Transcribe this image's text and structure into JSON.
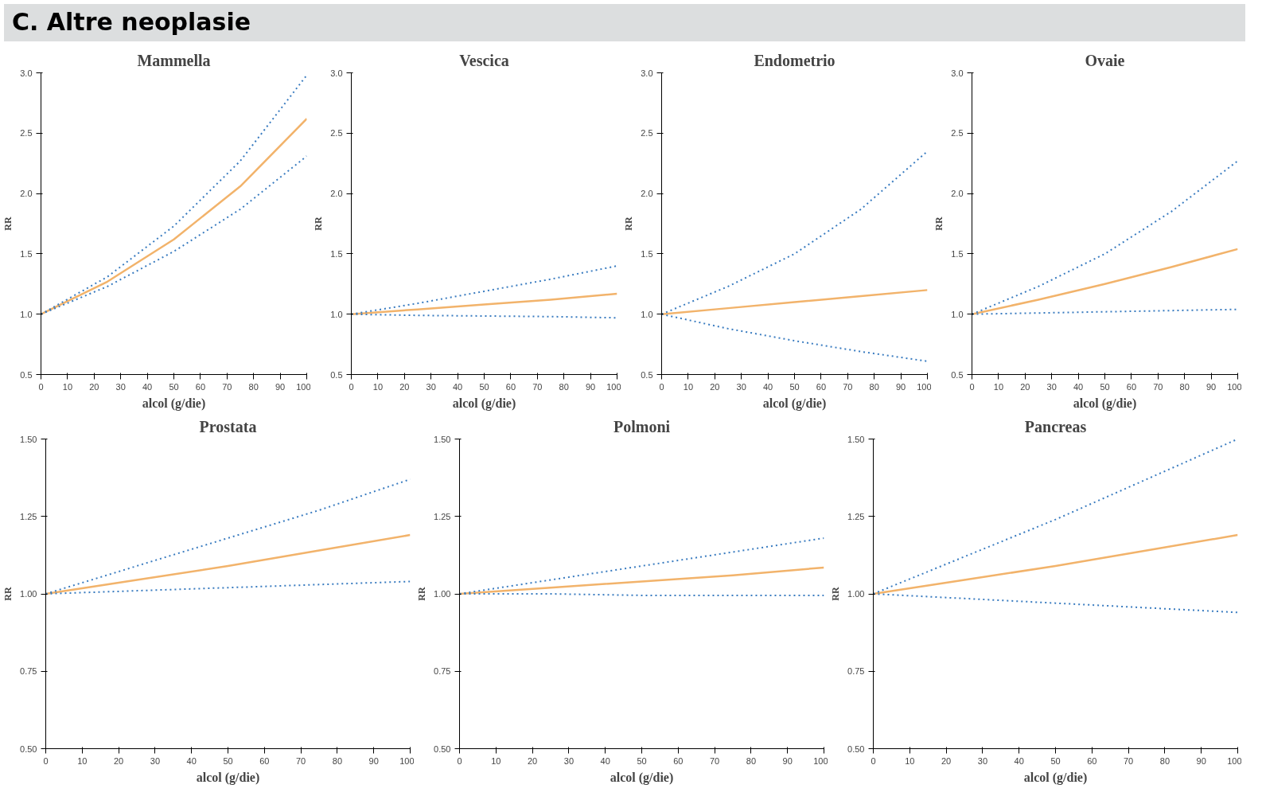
{
  "chart_data": [
    {
      "type": "line",
      "title": "Mammella",
      "annotations": [
        "C. Altre neoplasie"
      ],
      "xlabel": "alcol (g/die)",
      "ylabel": "RR",
      "x": [
        0,
        25,
        50,
        75,
        100
      ],
      "xlim": [
        0,
        100
      ],
      "xticks": [
        0,
        10,
        20,
        30,
        40,
        50,
        60,
        70,
        80,
        90,
        100
      ],
      "ylim": [
        0.5,
        3.0
      ],
      "yticks": [
        {
          "value": 0.5,
          "label": "0.5"
        },
        {
          "value": 1,
          "label": "1.0"
        },
        {
          "value": 1.5,
          "label": "1.5"
        },
        {
          "value": 2,
          "label": "2.0"
        },
        {
          "value": 2.5,
          "label": "2.5"
        },
        {
          "value": 3,
          "label": "3.0"
        }
      ],
      "grid": false,
      "marker": "none",
      "series": [
        {
          "color": "#f2b36b",
          "line_style": "solid",
          "values": [
            1.0,
            1.27,
            1.62,
            2.06,
            2.62
          ]
        },
        {
          "color": "#3a7cc0",
          "line_style": "dotted",
          "values": [
            1.0,
            1.31,
            1.73,
            2.27,
            2.98
          ]
        },
        {
          "color": "#3a7cc0",
          "line_style": "dotted",
          "values": [
            1.0,
            1.23,
            1.52,
            1.87,
            2.31
          ]
        }
      ]
    },
    {
      "type": "line",
      "title": "Vescica",
      "xlabel": "alcol (g/die)",
      "ylabel": "RR",
      "x": [
        0,
        25,
        50,
        75,
        100
      ],
      "xlim": [
        0,
        100
      ],
      "xticks": [
        0,
        10,
        20,
        30,
        40,
        50,
        60,
        70,
        80,
        90,
        100
      ],
      "ylim": [
        0.5,
        3.0
      ],
      "yticks": [
        {
          "value": 0.5,
          "label": "0.5"
        },
        {
          "value": 1,
          "label": "1.0"
        },
        {
          "value": 1.5,
          "label": "1.5"
        },
        {
          "value": 2,
          "label": "2.0"
        },
        {
          "value": 2.5,
          "label": "2.5"
        },
        {
          "value": 3,
          "label": "3.0"
        }
      ],
      "grid": false,
      "marker": "none",
      "series": [
        {
          "color": "#f2b36b",
          "line_style": "solid",
          "values": [
            1.0,
            1.04,
            1.08,
            1.12,
            1.17
          ]
        },
        {
          "color": "#3a7cc0",
          "line_style": "dotted",
          "values": [
            1.0,
            1.09,
            1.19,
            1.29,
            1.4
          ]
        },
        {
          "color": "#3a7cc0",
          "line_style": "dotted",
          "values": [
            1.0,
            0.99,
            0.985,
            0.98,
            0.97
          ]
        }
      ]
    },
    {
      "type": "line",
      "title": "Endometrio",
      "xlabel": "alcol (g/die)",
      "ylabel": "RR",
      "x": [
        0,
        25,
        50,
        75,
        100
      ],
      "xlim": [
        0,
        100
      ],
      "xticks": [
        0,
        10,
        20,
        30,
        40,
        50,
        60,
        70,
        80,
        90,
        100
      ],
      "ylim": [
        0.5,
        3.0
      ],
      "yticks": [
        {
          "value": 0.5,
          "label": "0.5"
        },
        {
          "value": 1,
          "label": "1.0"
        },
        {
          "value": 1.5,
          "label": "1.5"
        },
        {
          "value": 2,
          "label": "2.0"
        },
        {
          "value": 2.5,
          "label": "2.5"
        },
        {
          "value": 3,
          "label": "3.0"
        }
      ],
      "grid": false,
      "marker": "none",
      "series": [
        {
          "color": "#f2b36b",
          "line_style": "solid",
          "values": [
            1.0,
            1.05,
            1.1,
            1.15,
            1.2
          ]
        },
        {
          "color": "#3a7cc0",
          "line_style": "dotted",
          "values": [
            1.0,
            1.23,
            1.5,
            1.87,
            2.35
          ]
        },
        {
          "color": "#3a7cc0",
          "line_style": "dotted",
          "values": [
            1.0,
            0.88,
            0.78,
            0.69,
            0.61
          ]
        }
      ]
    },
    {
      "type": "line",
      "title": "Ovaie",
      "xlabel": "alcol (g/die)",
      "ylabel": "RR",
      "x": [
        0,
        25,
        50,
        75,
        100
      ],
      "xlim": [
        0,
        100
      ],
      "xticks": [
        0,
        10,
        20,
        30,
        40,
        50,
        60,
        70,
        80,
        90,
        100
      ],
      "ylim": [
        0.5,
        3.0
      ],
      "yticks": [
        {
          "value": 0.5,
          "label": "0.5"
        },
        {
          "value": 1,
          "label": "1.0"
        },
        {
          "value": 1.5,
          "label": "1.5"
        },
        {
          "value": 2,
          "label": "2.0"
        },
        {
          "value": 2.5,
          "label": "2.5"
        },
        {
          "value": 3,
          "label": "3.0"
        }
      ],
      "grid": false,
      "marker": "none",
      "series": [
        {
          "color": "#f2b36b",
          "line_style": "solid",
          "values": [
            1.0,
            1.12,
            1.25,
            1.39,
            1.54
          ]
        },
        {
          "color": "#3a7cc0",
          "line_style": "dotted",
          "values": [
            1.0,
            1.23,
            1.5,
            1.85,
            2.27
          ]
        },
        {
          "color": "#3a7cc0",
          "line_style": "dotted",
          "values": [
            1.0,
            1.01,
            1.02,
            1.03,
            1.04
          ]
        }
      ]
    },
    {
      "type": "line",
      "title": "Prostata",
      "xlabel": "alcol (g/die)",
      "ylabel": "RR",
      "x": [
        0,
        25,
        50,
        75,
        100
      ],
      "xlim": [
        0,
        100
      ],
      "xticks": [
        0,
        10,
        20,
        30,
        40,
        50,
        60,
        70,
        80,
        90,
        100
      ],
      "ylim": [
        0.5,
        1.5
      ],
      "yticks": [
        {
          "value": 0.5,
          "label": "0.50"
        },
        {
          "value": 0.75,
          "label": "0.75"
        },
        {
          "value": 1,
          "label": "1.00"
        },
        {
          "value": 1.25,
          "label": "1.25"
        },
        {
          "value": 1.5,
          "label": "1.50"
        }
      ],
      "grid": false,
      "marker": "none",
      "series": [
        {
          "color": "#f2b36b",
          "line_style": "solid",
          "values": [
            1.0,
            1.045,
            1.09,
            1.14,
            1.19
          ]
        },
        {
          "color": "#3a7cc0",
          "line_style": "dotted",
          "values": [
            1.0,
            1.09,
            1.18,
            1.27,
            1.37
          ]
        },
        {
          "color": "#3a7cc0",
          "line_style": "dotted",
          "values": [
            1.0,
            1.01,
            1.02,
            1.03,
            1.04
          ]
        }
      ]
    },
    {
      "type": "line",
      "title": "Polmoni",
      "xlabel": "alcol (g/die)",
      "ylabel": "RR",
      "x": [
        0,
        25,
        50,
        75,
        100
      ],
      "xlim": [
        0,
        100
      ],
      "xticks": [
        0,
        10,
        20,
        30,
        40,
        50,
        60,
        70,
        80,
        90,
        100
      ],
      "ylim": [
        0.5,
        1.5
      ],
      "yticks": [
        {
          "value": 0.5,
          "label": "0.50"
        },
        {
          "value": 0.75,
          "label": "0.75"
        },
        {
          "value": 1,
          "label": "1.00"
        },
        {
          "value": 1.25,
          "label": "1.25"
        },
        {
          "value": 1.5,
          "label": "1.50"
        }
      ],
      "grid": false,
      "marker": "none",
      "series": [
        {
          "color": "#f2b36b",
          "line_style": "solid",
          "values": [
            1.0,
            1.02,
            1.04,
            1.06,
            1.085
          ]
        },
        {
          "color": "#3a7cc0",
          "line_style": "dotted",
          "values": [
            1.0,
            1.045,
            1.09,
            1.135,
            1.18
          ]
        },
        {
          "color": "#3a7cc0",
          "line_style": "dotted",
          "values": [
            1.0,
            1.0,
            0.995,
            0.995,
            0.995
          ]
        }
      ]
    },
    {
      "type": "line",
      "title": "Pancreas",
      "xlabel": "alcol (g/die)",
      "ylabel": "RR",
      "x": [
        0,
        25,
        50,
        75,
        100
      ],
      "xlim": [
        0,
        100
      ],
      "xticks": [
        0,
        10,
        20,
        30,
        40,
        50,
        60,
        70,
        80,
        90,
        100
      ],
      "ylim": [
        0.5,
        1.5
      ],
      "yticks": [
        {
          "value": 0.5,
          "label": "0.50"
        },
        {
          "value": 0.75,
          "label": "0.75"
        },
        {
          "value": 1,
          "label": "1.00"
        },
        {
          "value": 1.25,
          "label": "1.25"
        },
        {
          "value": 1.5,
          "label": "1.50"
        }
      ],
      "grid": false,
      "marker": "none",
      "series": [
        {
          "color": "#f2b36b",
          "line_style": "solid",
          "values": [
            1.0,
            1.045,
            1.09,
            1.14,
            1.19
          ]
        },
        {
          "color": "#3a7cc0",
          "line_style": "dotted",
          "values": [
            1.0,
            1.12,
            1.24,
            1.37,
            1.5
          ]
        },
        {
          "color": "#3a7cc0",
          "line_style": "dotted",
          "values": [
            1.0,
            0.985,
            0.97,
            0.955,
            0.94
          ]
        }
      ]
    }
  ]
}
